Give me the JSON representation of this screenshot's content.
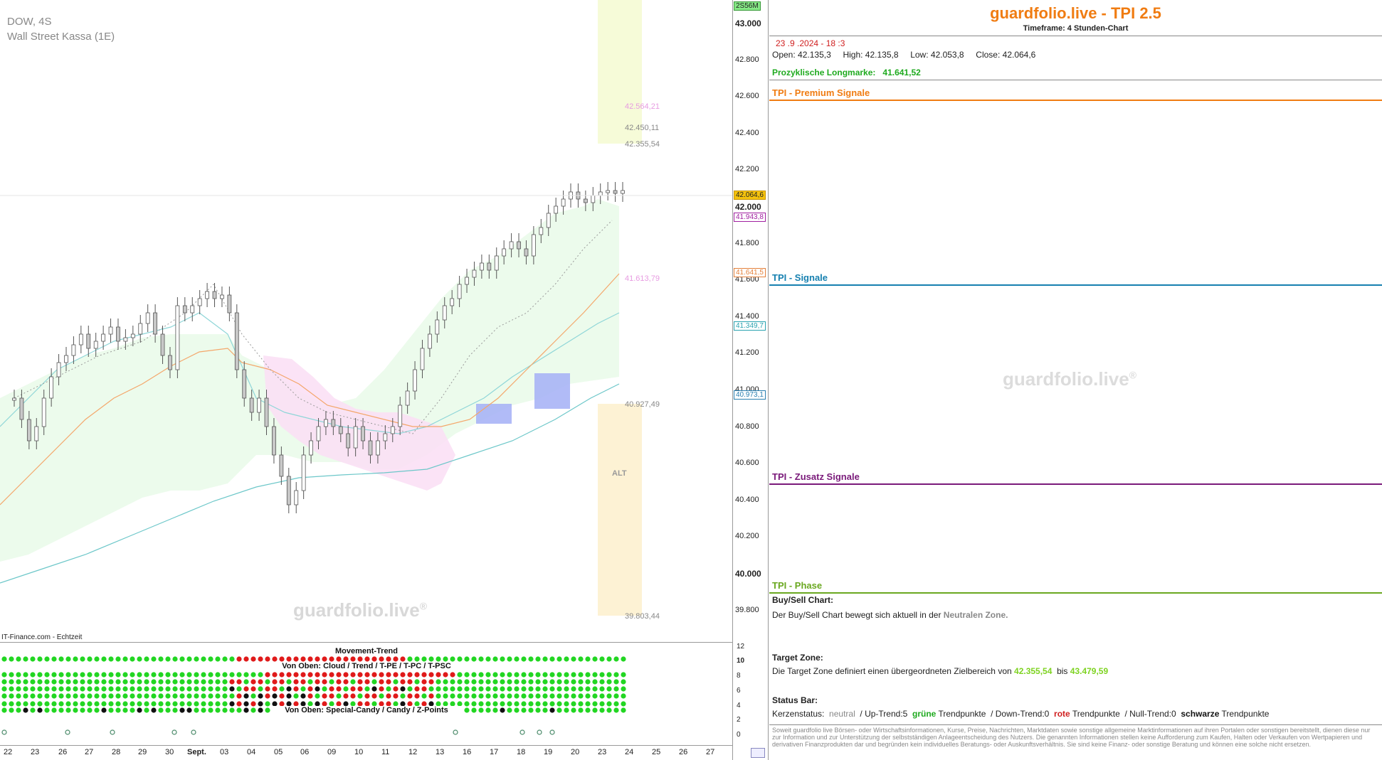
{
  "chart": {
    "symbol": "DOW, 4S",
    "instrument": "Wall Street Kassa (1E)",
    "source": "IT-Finance.com - Echtzeit",
    "watermark": "guardfolio.live",
    "watermark_reg": "®",
    "badge": "2S56M",
    "price_axis": [
      "43.000",
      "42.800",
      "42.600",
      "42.400",
      "42.200",
      "42.000",
      "41.800",
      "41.600",
      "41.400",
      "41.200",
      "41.000",
      "40.800",
      "40.600",
      "40.400",
      "40.200",
      "40.000",
      "39.800"
    ],
    "tags": {
      "last": "42.064,6",
      "purple": "41.943,8",
      "orange": "41.641,5",
      "teal": "41.349,7",
      "blue": "40.973,1"
    },
    "zone_labels": {
      "pink_top": "42.564,21",
      "top_1": "42.450,11",
      "top_2": "42.355,54",
      "pink_mid": "41.613,79",
      "bottom_1": "40.927,49",
      "alt": "ALT",
      "bottom_2": "39.803,44"
    },
    "dates": [
      "22",
      "23",
      "26",
      "27",
      "28",
      "29",
      "30",
      "Sept.",
      "03",
      "04",
      "05",
      "06",
      "09",
      "10",
      "11",
      "12",
      "13",
      "16",
      "17",
      "18",
      "19",
      "20",
      "23",
      "24",
      "25",
      "26",
      "27"
    ],
    "colors": {
      "up_candle": "#ffffff",
      "down_candle": "#c8c8c8",
      "green_zone": "#eafbea",
      "pink_cloud": "#fbe0f5",
      "yellow_zone": "#f6fbd8",
      "orange_zone": "#fdf2d4",
      "teal_line": "#6cc7c9",
      "orange_line": "#f4a66a",
      "blue_box": "#a8b4f6"
    }
  },
  "indicator": {
    "title1": "Movement-Trend",
    "title2": "Von Oben: Cloud / Trend / T-PE / T-PC / T-PSC",
    "title3": "Von Oben: Special-Candy / Candy / Z-Points",
    "axis": [
      "12",
      "10",
      "8",
      "6",
      "4",
      "2",
      "0"
    ]
  },
  "panel": {
    "title": "guardfolio.live - TPI 2.5",
    "subtitle": "Timeframe: 4 Stunden-Chart",
    "datetime": "23 .9 .2024  - 18 :3",
    "ohlc": {
      "open_label": "Open:",
      "open": "42.135,3",
      "high_label": "High:",
      "high": "42.135,8",
      "low_label": "Low:",
      "low": "42.053,8",
      "close_label": "Close:",
      "close": "42.064,6"
    },
    "longmark_label": "Prozyklische Longmarke:",
    "longmark_value": "41.641,52",
    "sections": {
      "premium": "TPI - Premium Signale",
      "signale": "TPI - Signale",
      "zusatz": "TPI - Zusatz Signale",
      "phase": "TPI - Phase"
    },
    "watermark": "guardfolio.live",
    "buysell_title": "Buy/Sell Chart:",
    "buysell_text": "Der Buy/Sell Chart bewegt sich aktuell in der",
    "buysell_zone": "Neutralen Zone.",
    "target_title": "Target Zone:",
    "target_text": "Die Target Zone definiert einen übergeordneten Zielbereich von",
    "target_from": "42.355,54",
    "target_bis": "bis",
    "target_to": "43.479,59",
    "status_title": "Status Bar:",
    "status": {
      "kerz_label": "Kerzenstatus:",
      "kerz_value": "neutral",
      "up_label": "/ Up-Trend:5",
      "up_color": "grüne",
      "up_suffix": "Trendpunkte",
      "down_label": "/ Down-Trend:0",
      "down_color": "rote",
      "down_suffix": "Trendpunkte",
      "null_label": "/ Null-Trend:0",
      "null_color": "schwarze",
      "null_suffix": "Trendpunkte"
    },
    "disclaimer": "Soweit guardfolio live Börsen- oder Wirtschaftsinformationen, Kurse, Preise, Nachrichten, Marktdaten sowie sonstige allgemeine Marktinformationen auf ihren Portalen oder sonstigen bereitstellt, dienen diese nur zur Information und zur Unterstützung der selbstständigen Anlageentscheidung des Nutzers. Die genannten Informationen stellen keine Aufforderung zum Kaufen, Halten oder Verkaufen von Wertpapieren und derivativen Finanzprodukten dar und begründen kein individuelles Beratungs- oder Auskunftsverhältnis. Sie sind keine Finanz- oder sonstige Beratung und können eine solche nicht ersetzen."
  }
}
